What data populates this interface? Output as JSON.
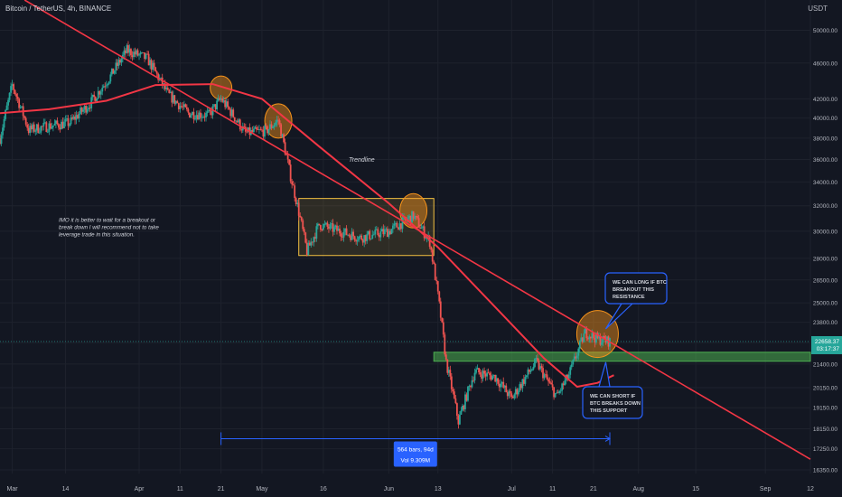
{
  "header": {
    "symbol_title": "Bitcoin / TetherUS, 4h, BINANCE",
    "currency": "USDT"
  },
  "colors": {
    "background": "#131722",
    "grid": "#1e222d",
    "up_candle": "#26a69a",
    "down_candle": "#ef5350",
    "trendline": "#f23645",
    "moving_average": "#f23645",
    "range_box_border": "#f5c242",
    "support_zone": "#4caf50",
    "circle_fill": "#f7931a",
    "callout_border": "#2962ff",
    "measure_line": "#2962ff",
    "price_label_bg": "#26a69a"
  },
  "chart_data": {
    "type": "candlestick",
    "timeframe": "4h",
    "x_tick_labels": [
      "Mar",
      "14",
      "Apr",
      "11",
      "21",
      "May",
      "16",
      "Jun",
      "13",
      "Jul",
      "11",
      "21",
      "Aug",
      "15",
      "Sep",
      "12"
    ],
    "x_range": [
      "2022-02-26",
      "2022-09-12"
    ],
    "y_scale": "log",
    "y_tick_labels": [
      "50000.00",
      "46000.00",
      "42000.00",
      "40000.00",
      "38000.00",
      "36000.00",
      "34000.00",
      "32000.00",
      "30000.00",
      "28000.00",
      "26500.00",
      "25000.00",
      "23800.00",
      "22600.00",
      "21400.00",
      "20150.00",
      "19150.00",
      "18150.00",
      "17250.00",
      "16350.00"
    ],
    "y_range": [
      16200,
      54000
    ],
    "price_path": [
      {
        "date": "2022-02-26",
        "close": 38000
      },
      {
        "date": "2022-03-01",
        "close": 43500
      },
      {
        "date": "2022-03-05",
        "close": 38800
      },
      {
        "date": "2022-03-10",
        "close": 39200
      },
      {
        "date": "2022-03-15",
        "close": 39500
      },
      {
        "date": "2022-03-20",
        "close": 41500
      },
      {
        "date": "2022-03-25",
        "close": 44500
      },
      {
        "date": "2022-03-29",
        "close": 47500
      },
      {
        "date": "2022-04-03",
        "close": 46500
      },
      {
        "date": "2022-04-08",
        "close": 42500
      },
      {
        "date": "2022-04-13",
        "close": 40500
      },
      {
        "date": "2022-04-18",
        "close": 40300
      },
      {
        "date": "2022-04-21",
        "close": 42000
      },
      {
        "date": "2022-04-27",
        "close": 38500
      },
      {
        "date": "2022-05-02",
        "close": 38700
      },
      {
        "date": "2022-05-05",
        "close": 39800
      },
      {
        "date": "2022-05-08",
        "close": 34500
      },
      {
        "date": "2022-05-10",
        "close": 31500
      },
      {
        "date": "2022-05-12",
        "close": 28500
      },
      {
        "date": "2022-05-15",
        "close": 30500
      },
      {
        "date": "2022-05-25",
        "close": 29500
      },
      {
        "date": "2022-06-01",
        "close": 30000
      },
      {
        "date": "2022-06-07",
        "close": 31200
      },
      {
        "date": "2022-06-11",
        "close": 29200
      },
      {
        "date": "2022-06-13",
        "close": 25500
      },
      {
        "date": "2022-06-15",
        "close": 21500
      },
      {
        "date": "2022-06-18",
        "close": 18500
      },
      {
        "date": "2022-06-22",
        "close": 21000
      },
      {
        "date": "2022-06-27",
        "close": 20700
      },
      {
        "date": "2022-07-01",
        "close": 19600
      },
      {
        "date": "2022-07-07",
        "close": 21500
      },
      {
        "date": "2022-07-12",
        "close": 19700
      },
      {
        "date": "2022-07-15",
        "close": 20800
      },
      {
        "date": "2022-07-19",
        "close": 23200
      },
      {
        "date": "2022-07-22",
        "close": 22800
      },
      {
        "date": "2022-07-25",
        "close": 22658
      }
    ],
    "moving_average": [
      {
        "date": "2022-02-26",
        "value": 40500
      },
      {
        "date": "2022-03-10",
        "value": 40900
      },
      {
        "date": "2022-03-24",
        "value": 41800
      },
      {
        "date": "2022-04-05",
        "value": 43500
      },
      {
        "date": "2022-04-19",
        "value": 43600
      },
      {
        "date": "2022-05-01",
        "value": 42000
      },
      {
        "date": "2022-05-15",
        "value": 37200
      },
      {
        "date": "2022-06-01",
        "value": 32200
      },
      {
        "date": "2022-06-13",
        "value": 28800
      },
      {
        "date": "2022-06-29",
        "value": 24200
      },
      {
        "date": "2022-07-09",
        "value": 21700
      },
      {
        "date": "2022-07-17",
        "value": 20200
      },
      {
        "date": "2022-07-22",
        "value": 20400
      },
      {
        "date": "2022-07-26",
        "value": 20800
      }
    ],
    "trendline": {
      "label": "Trendline",
      "points": [
        {
          "date": "2022-03-04",
          "price": 54000
        },
        {
          "date": "2022-09-12",
          "price": 16800
        }
      ]
    },
    "range_box": {
      "x": [
        "2022-05-10",
        "2022-06-12"
      ],
      "y": [
        28200,
        32600
      ]
    },
    "support_zone": {
      "x": [
        "2022-06-12",
        "2022-09-12"
      ],
      "y": [
        21550,
        22050
      ]
    },
    "circles": [
      {
        "date": "2022-04-21",
        "price": 43200
      },
      {
        "date": "2022-05-05",
        "price": 39700
      },
      {
        "date": "2022-06-07",
        "price": 31600
      },
      {
        "date": "2022-07-22",
        "price": 23100
      }
    ],
    "current_price": {
      "value": "22658.37",
      "countdown": "03:17:37"
    },
    "annotations": [
      {
        "text": "IMO it is better to wait for a breakout or break down I will recommend not to take leverage trade in this situation.",
        "date": "2022-02-28",
        "price": 30300
      },
      {
        "text": "WE CAN LONG IF BTC BREAKOUT THIS RESISTANCE",
        "date": "2022-07-23",
        "price": 26500,
        "box": true,
        "target": {
          "date": "2022-07-24",
          "price": 23400
        }
      },
      {
        "text": "WE CAN SHORT IF BTC BREAKS DOWN THIS SUPPORT",
        "date": "2022-07-23",
        "price": 19200,
        "box": true,
        "target": {
          "date": "2022-07-24",
          "price": 21500
        }
      }
    ],
    "measure": {
      "x": [
        "2022-04-21",
        "2022-07-25"
      ],
      "price": 17700,
      "label_line1": "564 bars, 94d",
      "label_line2": "Vol 9.309M"
    }
  }
}
